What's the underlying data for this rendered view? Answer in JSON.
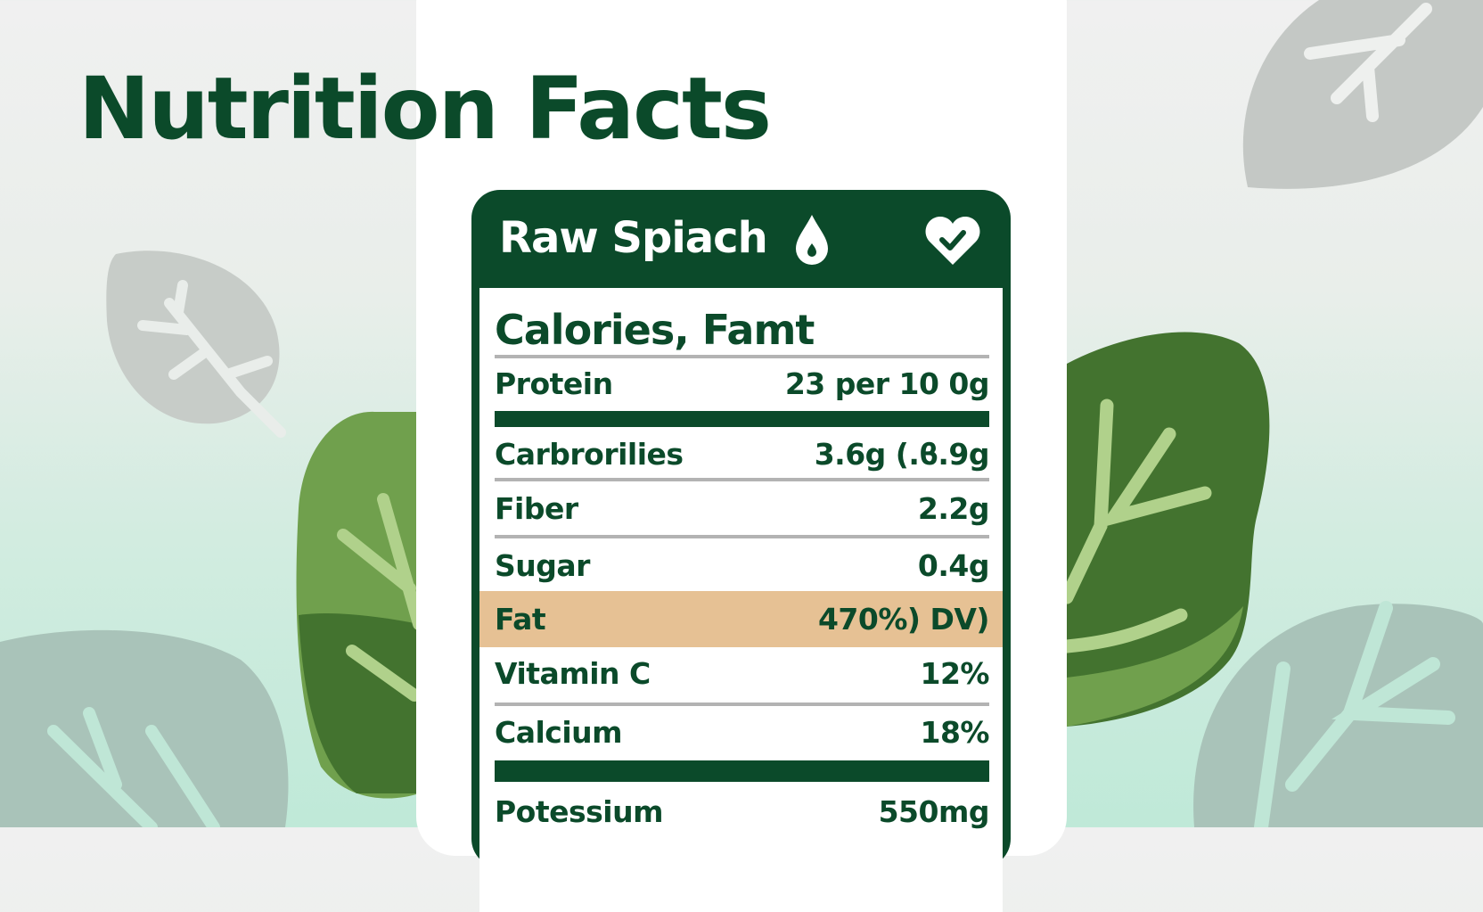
{
  "page_title": "Nutrition Facts",
  "card": {
    "title": "Raw Spiach",
    "header_icons": [
      "water-drop-icon",
      "heart-check-icon"
    ],
    "heading": "Calories, Famt",
    "rows": [
      {
        "label": "Protein",
        "value": "23 per  10 0g"
      },
      {
        "label": "Carbrorilies",
        "value": "3.6g (.ϐ.9g"
      },
      {
        "label": "Fiber",
        "value": "2.2g"
      },
      {
        "label": "Sugar",
        "value": "0.4g"
      },
      {
        "label": "Fat",
        "value": "470%) DV)",
        "highlighted": true
      },
      {
        "label": "Vitamin C",
        "value": "12%"
      },
      {
        "label": "Calcium",
        "value": "18%"
      },
      {
        "label": "Potessium",
        "value": "550mg"
      }
    ]
  },
  "colors": {
    "brand_green": "#0b4a2a",
    "highlight": "#e6c194",
    "leaf_dark": "#43732f",
    "leaf_light": "#70a04d"
  }
}
